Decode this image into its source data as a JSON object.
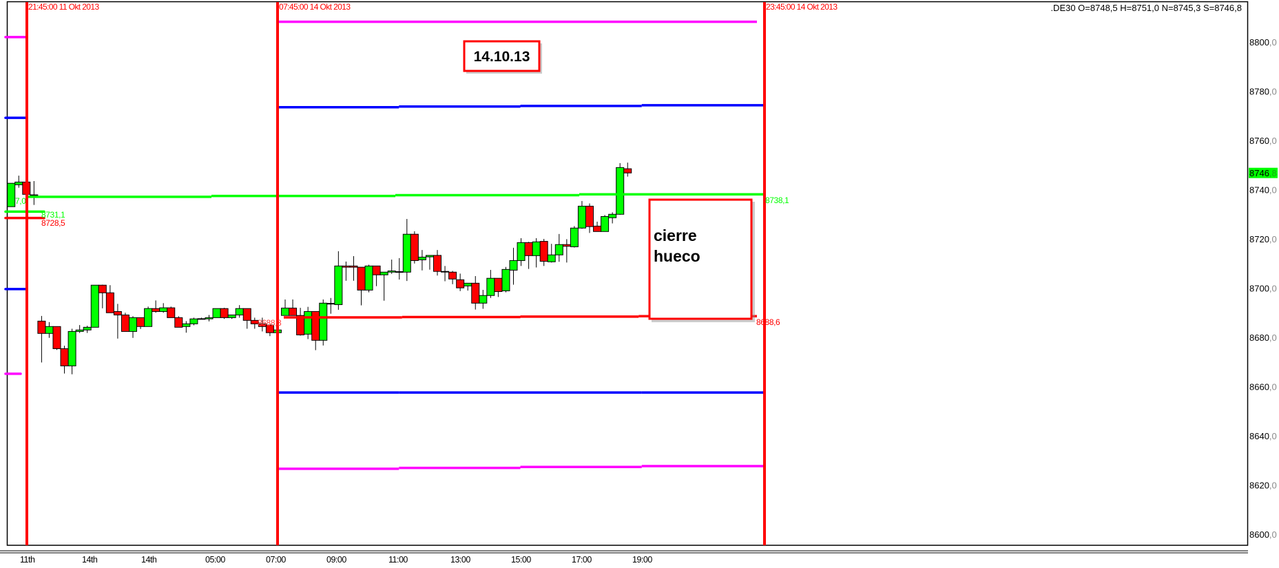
{
  "header": {
    "symbol_ohlc": ".DE30 O=8748,5 H=8751,0 N=8745,3 S=8746,8"
  },
  "session_markers": [
    {
      "label": "21:45:00 11 Okt 2013"
    },
    {
      "label": "07:45:00 14 Okt 2013"
    },
    {
      "label": "23:45:00 14 Okt 2013"
    }
  ],
  "annotations": {
    "date_box": "14.10.13",
    "note_line1": "cierre",
    "note_line2": "hueco"
  },
  "level_labels": {
    "left_partial": "7,0",
    "prev_green": "8731,1",
    "prev_red": "8728,5",
    "session_close": "8688,3",
    "green_right": "8738,1",
    "red_right": "8688,6"
  },
  "colors": {
    "up": "#00ff00",
    "down": "#ff0000",
    "session_line": "#ff0000",
    "magenta": "#ff00ff",
    "blue": "#0000ff",
    "green_level": "#00ff00",
    "red_level": "#ff0000"
  },
  "chart_data": {
    "type": "candlestick",
    "symbol": ".DE30",
    "interval": "15 min",
    "ylim": [
      8600,
      8800
    ],
    "y_ticks": [
      "8800,0",
      "8780,0",
      "8760,0",
      "8740,0",
      "8720,0",
      "8700,0",
      "8680,0",
      "8660,0",
      "8640,0",
      "8620,0",
      "8600,0"
    ],
    "x_ticks": [
      "11th",
      "14th",
      "14th",
      "05:00",
      "07:00",
      "09:00",
      "11:00",
      "13:00",
      "15:00",
      "17:00",
      "19:00"
    ],
    "last_price": {
      "int": "8746",
      "dec": ",8"
    },
    "grid": false,
    "candles": [
      {
        "o": 8733.1,
        "h": 8742.6,
        "l": 8733.1,
        "c": 8742.6
      },
      {
        "o": 8742.0,
        "h": 8745.7,
        "l": 8740.8,
        "c": 8743.1
      },
      {
        "o": 8743.1,
        "h": 8743.1,
        "l": 8738.1,
        "c": 8738.1
      },
      {
        "o": 8737.9,
        "h": 8743.5,
        "l": 8733.8,
        "c": 8737.8
      },
      {
        "o": 8686.6,
        "h": 8688.7,
        "l": 8669.8,
        "c": 8681.6
      },
      {
        "o": 8681.6,
        "h": 8686.2,
        "l": 8679.8,
        "c": 8684.4
      },
      {
        "o": 8684.4,
        "h": 8684.4,
        "l": 8674.9,
        "c": 8675.4
      },
      {
        "o": 8675.4,
        "h": 8676.6,
        "l": 8665.3,
        "c": 8668.4
      },
      {
        "o": 8668.4,
        "h": 8683.5,
        "l": 8665.0,
        "c": 8682.4
      },
      {
        "o": 8682.4,
        "h": 8685.0,
        "l": 8681.8,
        "c": 8683.0
      },
      {
        "o": 8683.0,
        "h": 8684.7,
        "l": 8681.8,
        "c": 8684.1
      },
      {
        "o": 8684.1,
        "h": 8701.2,
        "l": 8684.1,
        "c": 8701.2
      },
      {
        "o": 8701.2,
        "h": 8701.4,
        "l": 8691.8,
        "c": 8698.1
      },
      {
        "o": 8698.1,
        "h": 8701.2,
        "l": 8690.0,
        "c": 8690.0
      },
      {
        "o": 8690.5,
        "h": 8693.6,
        "l": 8679.5,
        "c": 8689.1
      },
      {
        "o": 8689.1,
        "h": 8690.0,
        "l": 8682.4,
        "c": 8682.4
      },
      {
        "o": 8682.4,
        "h": 8688.6,
        "l": 8679.8,
        "c": 8688.0
      },
      {
        "o": 8688.0,
        "h": 8688.0,
        "l": 8683.4,
        "c": 8684.4
      },
      {
        "o": 8684.4,
        "h": 8692.5,
        "l": 8684.4,
        "c": 8691.7
      },
      {
        "o": 8691.7,
        "h": 8695.0,
        "l": 8690.0,
        "c": 8690.5
      },
      {
        "o": 8690.5,
        "h": 8693.9,
        "l": 8690.0,
        "c": 8692.0
      },
      {
        "o": 8692.0,
        "h": 8692.5,
        "l": 8688.0,
        "c": 8688.0
      },
      {
        "o": 8688.0,
        "h": 8688.6,
        "l": 8684.1,
        "c": 8684.1
      },
      {
        "o": 8684.4,
        "h": 8686.6,
        "l": 8681.9,
        "c": 8685.5
      },
      {
        "o": 8685.5,
        "h": 8688.0,
        "l": 8684.9,
        "c": 8687.5
      },
      {
        "o": 8687.6,
        "h": 8688.0,
        "l": 8687.5,
        "c": 8687.5
      },
      {
        "o": 8687.5,
        "h": 8689.1,
        "l": 8686.5,
        "c": 8688.0
      },
      {
        "o": 8688.0,
        "h": 8691.7,
        "l": 8688.0,
        "c": 8691.7
      },
      {
        "o": 8691.7,
        "h": 8692.0,
        "l": 8687.5,
        "c": 8688.0
      },
      {
        "o": 8688.0,
        "h": 8689.1,
        "l": 8687.5,
        "c": 8689.1
      },
      {
        "o": 8689.1,
        "h": 8693.1,
        "l": 8688.0,
        "c": 8691.7
      },
      {
        "o": 8691.7,
        "h": 8691.7,
        "l": 8683.5,
        "c": 8686.9
      },
      {
        "o": 8686.9,
        "h": 8688.0,
        "l": 8683.5,
        "c": 8685.5
      },
      {
        "o": 8685.5,
        "h": 8688.0,
        "l": 8682.4,
        "c": 8684.4
      },
      {
        "o": 8685.0,
        "h": 8685.0,
        "l": 8680.5,
        "c": 8681.9
      },
      {
        "o": 8681.9,
        "h": 8683.0,
        "l": 8681.9,
        "c": 8683.0
      },
      {
        "o": 8688.9,
        "h": 8695.4,
        "l": 8688.9,
        "c": 8691.9
      },
      {
        "o": 8691.9,
        "h": 8695.4,
        "l": 8688.9,
        "c": 8688.9
      },
      {
        "o": 8688.9,
        "h": 8692.0,
        "l": 8680.7,
        "c": 8681.0
      },
      {
        "o": 8681.3,
        "h": 8692.4,
        "l": 8679.3,
        "c": 8690.5
      },
      {
        "o": 8690.5,
        "h": 8690.5,
        "l": 8674.8,
        "c": 8678.8
      },
      {
        "o": 8678.8,
        "h": 8695.4,
        "l": 8676.7,
        "c": 8693.9
      },
      {
        "o": 8693.8,
        "h": 8696.0,
        "l": 8689.6,
        "c": 8693.7
      },
      {
        "o": 8693.3,
        "h": 8715.0,
        "l": 8691.2,
        "c": 8709.0
      },
      {
        "o": 8709.0,
        "h": 8710.8,
        "l": 8703.0,
        "c": 8708.5
      },
      {
        "o": 8709.0,
        "h": 8713.0,
        "l": 8703.0,
        "c": 8708.5
      },
      {
        "o": 8708.5,
        "h": 8708.5,
        "l": 8693.0,
        "c": 8699.2
      },
      {
        "o": 8699.2,
        "h": 8709.5,
        "l": 8698.3,
        "c": 8709.0
      },
      {
        "o": 8709.0,
        "h": 8709.0,
        "l": 8700.8,
        "c": 8705.4
      },
      {
        "o": 8705.4,
        "h": 8706.5,
        "l": 8694.9,
        "c": 8706.5
      },
      {
        "o": 8706.5,
        "h": 8711.6,
        "l": 8705.8,
        "c": 8707.0
      },
      {
        "o": 8706.7,
        "h": 8712.2,
        "l": 8703.5,
        "c": 8706.6
      },
      {
        "o": 8706.5,
        "h": 8728.1,
        "l": 8702.9,
        "c": 8721.9
      },
      {
        "o": 8721.9,
        "h": 8723.1,
        "l": 8710.0,
        "c": 8711.2
      },
      {
        "o": 8711.5,
        "h": 8715.5,
        "l": 8707.2,
        "c": 8712.6
      },
      {
        "o": 8712.7,
        "h": 8713.3,
        "l": 8707.5,
        "c": 8713.3
      },
      {
        "o": 8713.3,
        "h": 8715.5,
        "l": 8705.1,
        "c": 8706.8
      },
      {
        "o": 8706.8,
        "h": 8709.0,
        "l": 8702.8,
        "c": 8706.7
      },
      {
        "o": 8706.5,
        "h": 8707.0,
        "l": 8701.6,
        "c": 8703.7
      },
      {
        "o": 8703.4,
        "h": 8705.9,
        "l": 8698.8,
        "c": 8700.1
      },
      {
        "o": 8700.9,
        "h": 8702.0,
        "l": 8699.0,
        "c": 8702.0
      },
      {
        "o": 8702.0,
        "h": 8704.9,
        "l": 8691.3,
        "c": 8693.9
      },
      {
        "o": 8693.9,
        "h": 8699.3,
        "l": 8691.6,
        "c": 8697.0
      },
      {
        "o": 8697.0,
        "h": 8707.4,
        "l": 8696.0,
        "c": 8704.0
      },
      {
        "o": 8704.0,
        "h": 8704.0,
        "l": 8696.4,
        "c": 8698.6
      },
      {
        "o": 8698.9,
        "h": 8708.6,
        "l": 8698.3,
        "c": 8707.6
      },
      {
        "o": 8707.3,
        "h": 8716.4,
        "l": 8701.4,
        "c": 8711.2
      },
      {
        "o": 8711.2,
        "h": 8720.3,
        "l": 8709.0,
        "c": 8718.5
      },
      {
        "o": 8718.5,
        "h": 8718.8,
        "l": 8707.8,
        "c": 8713.2
      },
      {
        "o": 8713.2,
        "h": 8720.3,
        "l": 8708.4,
        "c": 8718.8
      },
      {
        "o": 8719.0,
        "h": 8720.0,
        "l": 8709.0,
        "c": 8710.9
      },
      {
        "o": 8710.7,
        "h": 8718.0,
        "l": 8710.4,
        "c": 8713.5
      },
      {
        "o": 8713.5,
        "h": 8722.0,
        "l": 8710.7,
        "c": 8717.7
      },
      {
        "o": 8717.7,
        "h": 8719.9,
        "l": 8710.4,
        "c": 8717.0
      },
      {
        "o": 8716.8,
        "h": 8725.2,
        "l": 8716.5,
        "c": 8724.4
      },
      {
        "o": 8724.4,
        "h": 8735.4,
        "l": 8724.1,
        "c": 8733.3
      },
      {
        "o": 8733.3,
        "h": 8734.4,
        "l": 8722.4,
        "c": 8725.0
      },
      {
        "o": 8725.2,
        "h": 8727.0,
        "l": 8723.0,
        "c": 8723.0
      },
      {
        "o": 8723.0,
        "h": 8729.7,
        "l": 8723.0,
        "c": 8729.1
      },
      {
        "o": 8728.6,
        "h": 8730.8,
        "l": 8726.3,
        "c": 8730.0
      },
      {
        "o": 8730.0,
        "h": 8750.8,
        "l": 8729.8,
        "c": 8749.0
      },
      {
        "o": 8748.5,
        "h": 8751.0,
        "l": 8745.3,
        "c": 8746.8
      }
    ],
    "levels_prev_session": [
      {
        "color": "#ff00ff",
        "price": 8802.0
      },
      {
        "color": "#0000ff",
        "price": 8769.2
      },
      {
        "color": "#00ff00",
        "price": 8731.1
      },
      {
        "color": "#ff0000",
        "price": 8728.5
      },
      {
        "color": "#0000ff",
        "price": 8699.6
      },
      {
        "color": "#ff00ff",
        "price": 8665.2
      }
    ],
    "levels_current_session": [
      {
        "color": "#ff00ff",
        "start_price": 8808.2,
        "end_price": 8808.2
      },
      {
        "color": "#0000ff",
        "start_price": 8773.5,
        "end_price": 8774.3
      },
      {
        "color": "#00ff00",
        "start_price": 8737.1,
        "end_price": 8738.1
      },
      {
        "color": "#ff0000",
        "start_price": 8688.1,
        "end_price": 8688.6
      },
      {
        "color": "#0000ff",
        "start_price": 8657.6,
        "end_price": 8657.6
      },
      {
        "color": "#ff00ff",
        "start_price": 8626.6,
        "end_price": 8627.7
      }
    ]
  }
}
